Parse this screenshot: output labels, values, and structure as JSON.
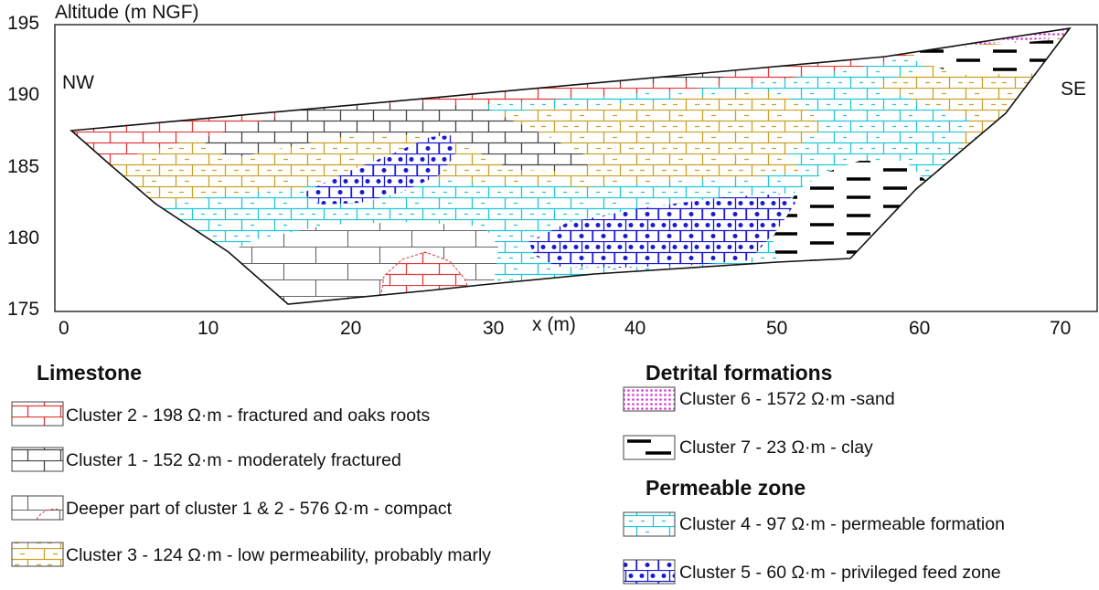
{
  "figure": {
    "y_axis_title": "Altitude (m NGF)",
    "x_axis_title": "x (m)",
    "left_label": "NW",
    "right_label": "SE",
    "x_ticks": [
      "0",
      "10",
      "20",
      "30",
      "40",
      "50",
      "60",
      "70"
    ],
    "y_ticks": [
      "195",
      "190",
      "185",
      "180",
      "175"
    ]
  },
  "legend": {
    "limestone": {
      "heading": "Limestone",
      "items": [
        {
          "label": "Cluster 2 - 198 Ω·m - fractured and oaks roots",
          "color": "#e03a3a",
          "pattern": "brick"
        },
        {
          "label": "Cluster 1 - 152 Ω·m - moderately fractured",
          "color": "#444444",
          "pattern": "brick"
        },
        {
          "label": "Deeper part of cluster 1 & 2 - 576 Ω·m - compact",
          "color": "#555555",
          "pattern": "large-brick"
        },
        {
          "label": "Cluster 3 - 124 Ω·m - low permeability, probably marly",
          "color": "#c9a227",
          "pattern": "brick-dash"
        }
      ]
    },
    "detrital": {
      "heading": "Detrital formations",
      "items": [
        {
          "label": "Cluster 6 - 1572 Ω·m -sand",
          "color": "#d633d6",
          "pattern": "dots"
        },
        {
          "label": "Cluster 7 - 23 Ω·m - clay",
          "color": "#000000",
          "pattern": "dashes"
        }
      ]
    },
    "permeable": {
      "heading": "Permeable zone",
      "items": [
        {
          "label": "Cluster 4 - 97 Ω·m - permeable formation",
          "color": "#1ec8d8",
          "pattern": "brick-dash"
        },
        {
          "label": "Cluster 5 - 60 Ω·m - privileged feed zone",
          "color": "#1a1ad0",
          "pattern": "brick-dots"
        }
      ]
    }
  }
}
